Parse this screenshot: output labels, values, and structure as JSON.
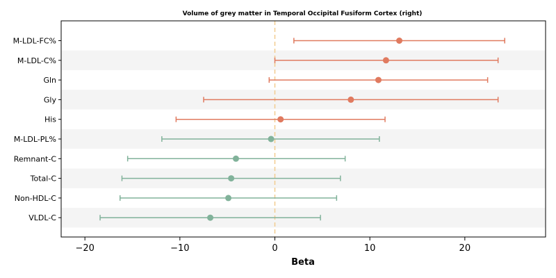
{
  "chart_data": {
    "type": "forest",
    "title": "Volume of grey matter in Temporal Occipital Fusiform Cortex (right)",
    "xlabel": "Beta",
    "ylabel": "",
    "xlim": [
      -22.5,
      28.5
    ],
    "xticks": [
      -20,
      -10,
      0,
      10,
      20
    ],
    "xtick_labels": [
      "−20",
      "−10",
      "0",
      "10",
      "20"
    ],
    "reference_line": 0,
    "row_shading": "alternating",
    "colors": {
      "positive": "#e07a5f",
      "negative": "#81b29a",
      "reference": "#f2cc8f",
      "band": "#f4f4f4"
    },
    "points": [
      {
        "label": "M-LDL-FC%",
        "estimate": 13.1,
        "lower": 2.0,
        "upper": 24.2
      },
      {
        "label": "M-LDL-C%",
        "estimate": 11.7,
        "lower": 0.0,
        "upper": 23.5
      },
      {
        "label": "Gln",
        "estimate": 10.9,
        "lower": -0.6,
        "upper": 22.4
      },
      {
        "label": "Gly",
        "estimate": 8.0,
        "lower": -7.5,
        "upper": 23.5
      },
      {
        "label": "His",
        "estimate": 0.6,
        "lower": -10.4,
        "upper": 11.6
      },
      {
        "label": "M-LDL-PL%",
        "estimate": -0.4,
        "lower": -11.9,
        "upper": 11.0
      },
      {
        "label": "Remnant-C",
        "estimate": -4.1,
        "lower": -15.5,
        "upper": 7.4
      },
      {
        "label": "Total-C",
        "estimate": -4.6,
        "lower": -16.1,
        "upper": 6.9
      },
      {
        "label": "Non-HDL-C",
        "estimate": -4.9,
        "lower": -16.3,
        "upper": 6.5
      },
      {
        "label": "VLDL-C",
        "estimate": -6.8,
        "lower": -18.4,
        "upper": 4.8
      }
    ]
  }
}
